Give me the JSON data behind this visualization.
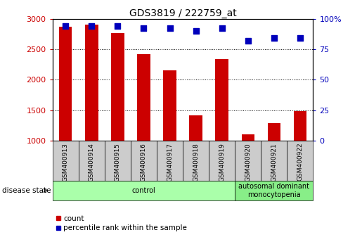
{
  "title": "GDS3819 / 222759_at",
  "samples": [
    "GSM400913",
    "GSM400914",
    "GSM400915",
    "GSM400916",
    "GSM400917",
    "GSM400918",
    "GSM400919",
    "GSM400920",
    "GSM400921",
    "GSM400922"
  ],
  "counts": [
    2870,
    2900,
    2760,
    2420,
    2150,
    1420,
    2340,
    1100,
    1290,
    1480
  ],
  "percentile_ranks": [
    94,
    94,
    94,
    92,
    92,
    90,
    92,
    82,
    84,
    84
  ],
  "ylim_left": [
    1000,
    3000
  ],
  "ylim_right": [
    0,
    100
  ],
  "yticks_left": [
    1000,
    1500,
    2000,
    2500,
    3000
  ],
  "yticks_right": [
    0,
    25,
    50,
    75,
    100
  ],
  "ytick_labels_right": [
    "0",
    "25",
    "50",
    "75",
    "100%"
  ],
  "bar_color": "#cc0000",
  "dot_color": "#0000bb",
  "grid_color": "#000000",
  "grid_linestyle": ":",
  "grid_linewidth": 0.7,
  "grid_values": [
    1500,
    2000,
    2500
  ],
  "disease_groups": [
    {
      "label": "control",
      "start": 0,
      "end": 7,
      "color": "#aaffaa"
    },
    {
      "label": "autosomal dominant\nmonocytopenia",
      "start": 7,
      "end": 10,
      "color": "#88ee88"
    }
  ],
  "disease_state_label": "disease state",
  "legend_items": [
    {
      "label": "count",
      "color": "#cc0000",
      "marker": "s"
    },
    {
      "label": "percentile rank within the sample",
      "color": "#0000bb",
      "marker": "s"
    }
  ],
  "tick_label_color_left": "#cc0000",
  "tick_label_color_right": "#0000bb",
  "bar_bottom": 1000,
  "bar_width": 0.5,
  "dot_size": 30,
  "sample_box_color": "#cccccc",
  "sample_box_edge": "#000000"
}
